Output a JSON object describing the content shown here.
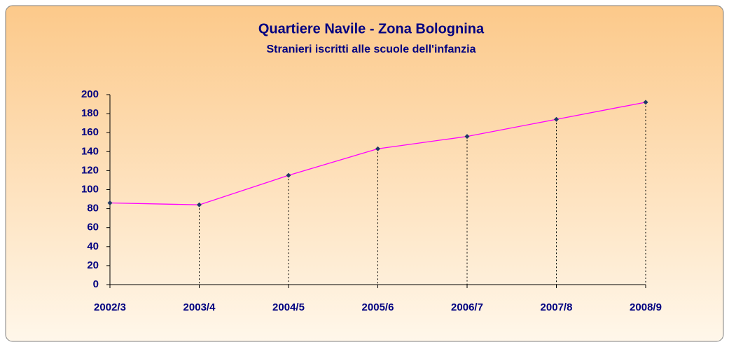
{
  "chart_data": {
    "type": "line",
    "title": "Quartiere Navile - Zona Bolognina",
    "subtitle": "Stranieri iscritti alle scuole dell'infanzia",
    "categories": [
      "2002/3",
      "2003/4",
      "2004/5",
      "2005/6",
      "2006/7",
      "2007/8",
      "2008/9"
    ],
    "series": [
      {
        "name": "Stranieri",
        "color": "#ff00ff",
        "marker_color": "#1f3864",
        "values": [
          86,
          84,
          115,
          143,
          156,
          174,
          192
        ]
      }
    ],
    "ylim": [
      0,
      200
    ],
    "yticks": [
      0,
      20,
      40,
      60,
      80,
      100,
      120,
      140,
      160,
      180,
      200
    ],
    "drop_lines": true
  }
}
